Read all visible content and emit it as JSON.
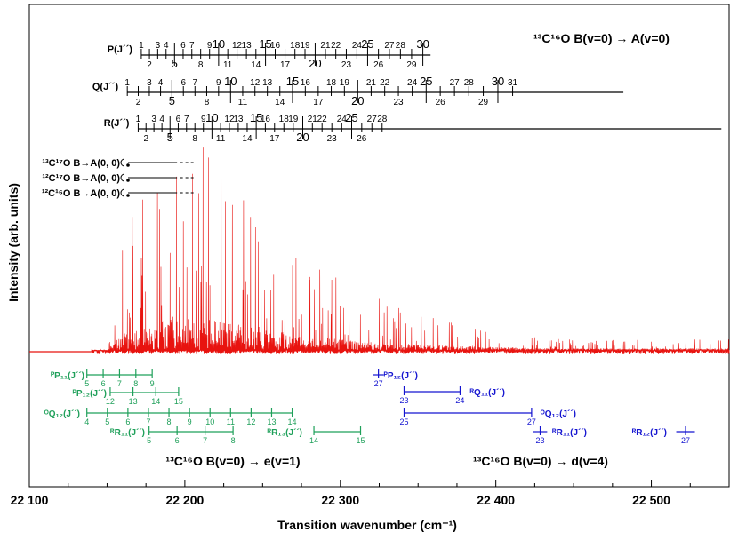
{
  "chart_data": {
    "type": "line",
    "title": "¹³C¹⁶O  B(v=0) → A(v=0)",
    "xlabel": "Transition wavenumber (cm⁻¹)",
    "ylabel": "Intensity (arb. units)",
    "xlim": [
      22100,
      22550
    ],
    "x_ticks": [
      22100,
      22200,
      22300,
      22400,
      22500
    ],
    "x_tick_labels": [
      "22 100",
      "22 200",
      "22 300",
      "22 400",
      "22 500"
    ],
    "spectrum_color": "#e8130f",
    "spectrum_extent": [
      22140,
      22550
    ],
    "main_ladders": [
      {
        "name": "P",
        "label": "P(J´´)",
        "start": 22172,
        "end": 22358,
        "label_j": [
          1,
          2,
          3,
          4,
          5,
          6,
          7,
          8,
          9,
          10,
          11,
          12,
          13,
          14,
          15,
          16,
          17,
          18,
          19,
          20,
          21,
          22,
          23,
          24,
          25,
          26,
          27,
          28,
          29,
          30
        ]
      },
      {
        "name": "Q",
        "label": "Q(J´´)",
        "start": 22163,
        "end": 22482,
        "label_j": [
          1,
          2,
          3,
          4,
          5,
          6,
          7,
          8,
          9,
          10,
          11,
          12,
          13,
          14,
          15,
          16,
          17,
          18,
          19,
          20,
          21,
          22,
          23,
          24,
          25,
          26,
          27,
          28,
          29,
          30,
          31
        ]
      },
      {
        "name": "R",
        "label": "R(J´´)",
        "start": 22170,
        "end": 22545,
        "label_j": [
          1,
          2,
          3,
          4,
          5,
          6,
          7,
          8,
          9,
          10,
          11,
          12,
          13,
          14,
          15,
          16,
          17,
          18,
          19,
          20,
          21,
          22,
          23,
          24,
          25,
          26,
          27,
          28
        ]
      }
    ],
    "isotopologue_markers": [
      {
        "label": "¹³C¹⁷O B→A(0, 0)"
      },
      {
        "label": "¹²C¹⁷O B→A(0, 0)"
      },
      {
        "label": "¹²C¹⁶O B→A(0, 0)"
      }
    ],
    "perturbation_ladders": [
      {
        "label": "ᴾP₁₁(J´´)",
        "color": "#1fa05a",
        "ticks": [
          5,
          6,
          7,
          8,
          9
        ]
      },
      {
        "label": "ᴾP₁₂(J´´)",
        "color": "#1fa05a",
        "ticks": [
          12,
          13,
          14,
          15
        ]
      },
      {
        "label": "ᴼQ₁₂(J´´)",
        "color": "#1fa05a",
        "ticks": [
          4,
          5,
          6,
          7,
          8,
          9,
          10,
          11,
          12,
          13,
          14
        ]
      },
      {
        "label": "ᴿR₁₁(J´´)",
        "color": "#1fa05a",
        "ticks": [
          5,
          6,
          7,
          8
        ]
      },
      {
        "label": "ᴿR₁₃(J´´)",
        "color": "#1fa05a",
        "ticks": [
          14,
          15
        ]
      },
      {
        "label": "ᴾP₁₂(J´´)",
        "color": "#1414d0",
        "ticks": [
          27
        ]
      },
      {
        "label": "ᴿQ₁₁(J´´)",
        "color": "#1414d0",
        "ticks": [
          23,
          24
        ]
      },
      {
        "label": "ᴼQ₁₂(J´´)",
        "color": "#1414d0",
        "ticks": [
          25,
          27
        ]
      },
      {
        "label": "ᴿR₁₁(J´´)",
        "color": "#1414d0",
        "ticks": [
          23
        ]
      },
      {
        "label": "ᴿR₁₂(J´´)",
        "color": "#1414d0",
        "ticks": [
          27
        ]
      }
    ],
    "annotations": [
      {
        "text": "¹³C¹⁶O B(v=0) → e(v=1)",
        "color": "#1fa05a"
      },
      {
        "text": "¹³C¹⁶O B(v=0) → d(v=4)",
        "color": "#1414d0"
      }
    ]
  }
}
